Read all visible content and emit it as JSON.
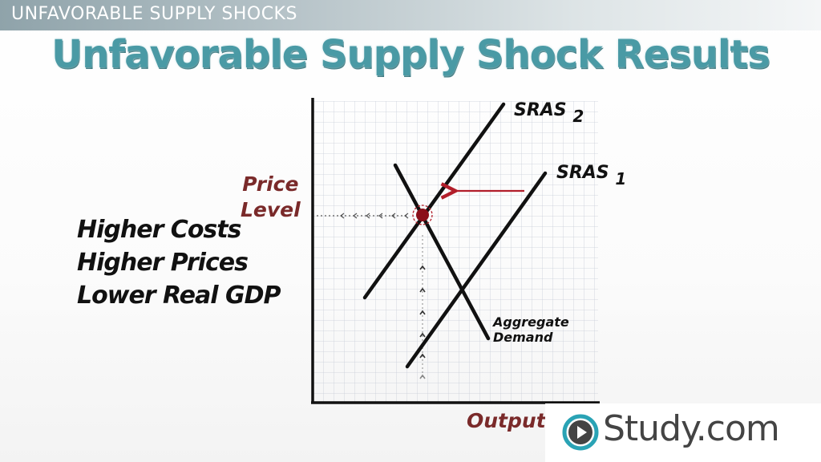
{
  "header": {
    "section_title": "UNFAVORABLE SUPPLY SHOCKS",
    "slide_title": "Unfavorable Supply Shock Results"
  },
  "effects": [
    "Higher Costs",
    "Higher Prices",
    "Lower Real GDP"
  ],
  "diagram": {
    "y_axis_label_line1": "Price",
    "y_axis_label_line2": "Level",
    "x_axis_label": "Output",
    "curves": {
      "sras2": {
        "name": "SRAS",
        "subscript": "2"
      },
      "sras1": {
        "name": "SRAS",
        "subscript": "1"
      },
      "aggregate_demand": {
        "line1": "Aggregate",
        "line2": "Demand"
      }
    },
    "shift_direction": "left",
    "colors": {
      "axis_label": "#7a2a2a",
      "shift_arrow": "#b21e2a",
      "equilibrium_marker": "#8b0f1a",
      "curve": "#111111",
      "grid": "#c8cdd8"
    }
  },
  "brand": {
    "name": "Study.com",
    "icon": "play-circle-icon",
    "accent_color": "#2aa3b5"
  },
  "colors": {
    "title": "#4a9aa5",
    "header_bar": "#a8b8be"
  }
}
